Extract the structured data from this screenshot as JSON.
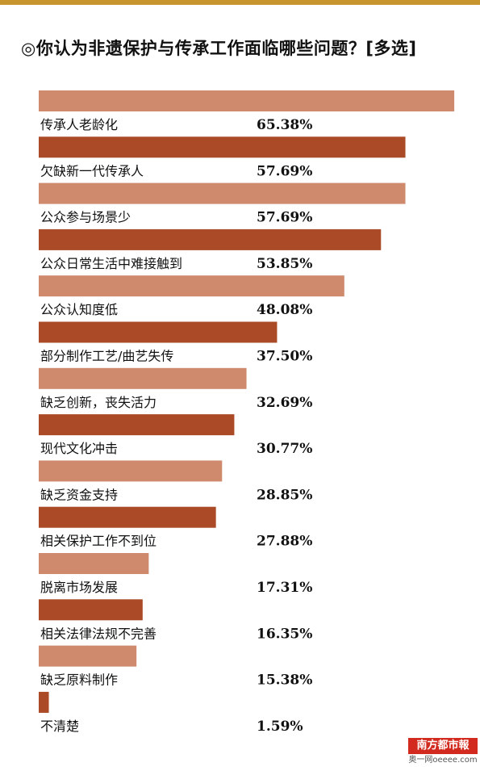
{
  "chart_data": {
    "type": "bar",
    "orientation": "horizontal",
    "title": "◎你认为非遗保护与传承工作面临哪些问题？[多选]",
    "categories": [
      "传承人老龄化",
      "欠缺新一代传承人",
      "公众参与场景少",
      "公众日常生活中难接触到",
      "公众认知度低",
      "部分制作工艺/曲艺失传",
      "缺乏创新，丧失活力",
      "现代文化冲击",
      "缺乏资金支持",
      "相关保护工作不到位",
      "脱离市场发展",
      "相关法律法规不完善",
      "缺乏原料制作",
      "不清楚"
    ],
    "values": [
      65.38,
      57.69,
      57.69,
      53.85,
      48.08,
      37.5,
      32.69,
      30.77,
      28.85,
      27.88,
      17.31,
      16.35,
      15.38,
      1.59
    ],
    "value_labels": [
      "65.38%",
      "57.69%",
      "57.69%",
      "53.85%",
      "48.08%",
      "37.50%",
      "32.69%",
      "30.77%",
      "28.85%",
      "27.88%",
      "17.31%",
      "16.35%",
      "15.38%",
      "1.59%"
    ],
    "value_unit": "%",
    "xlim": [
      0,
      66
    ],
    "grid": false,
    "colors": {
      "light": "#cf8a6e",
      "dark": "#aa4a26"
    },
    "color_pattern": [
      "light",
      "dark"
    ]
  },
  "decor": {
    "top_rule_color": "#c8942e"
  },
  "footer": {
    "logo_text": "南方都市報",
    "logo_color": "#d22a1e",
    "site_text": "奥一网oeeee.com"
  }
}
